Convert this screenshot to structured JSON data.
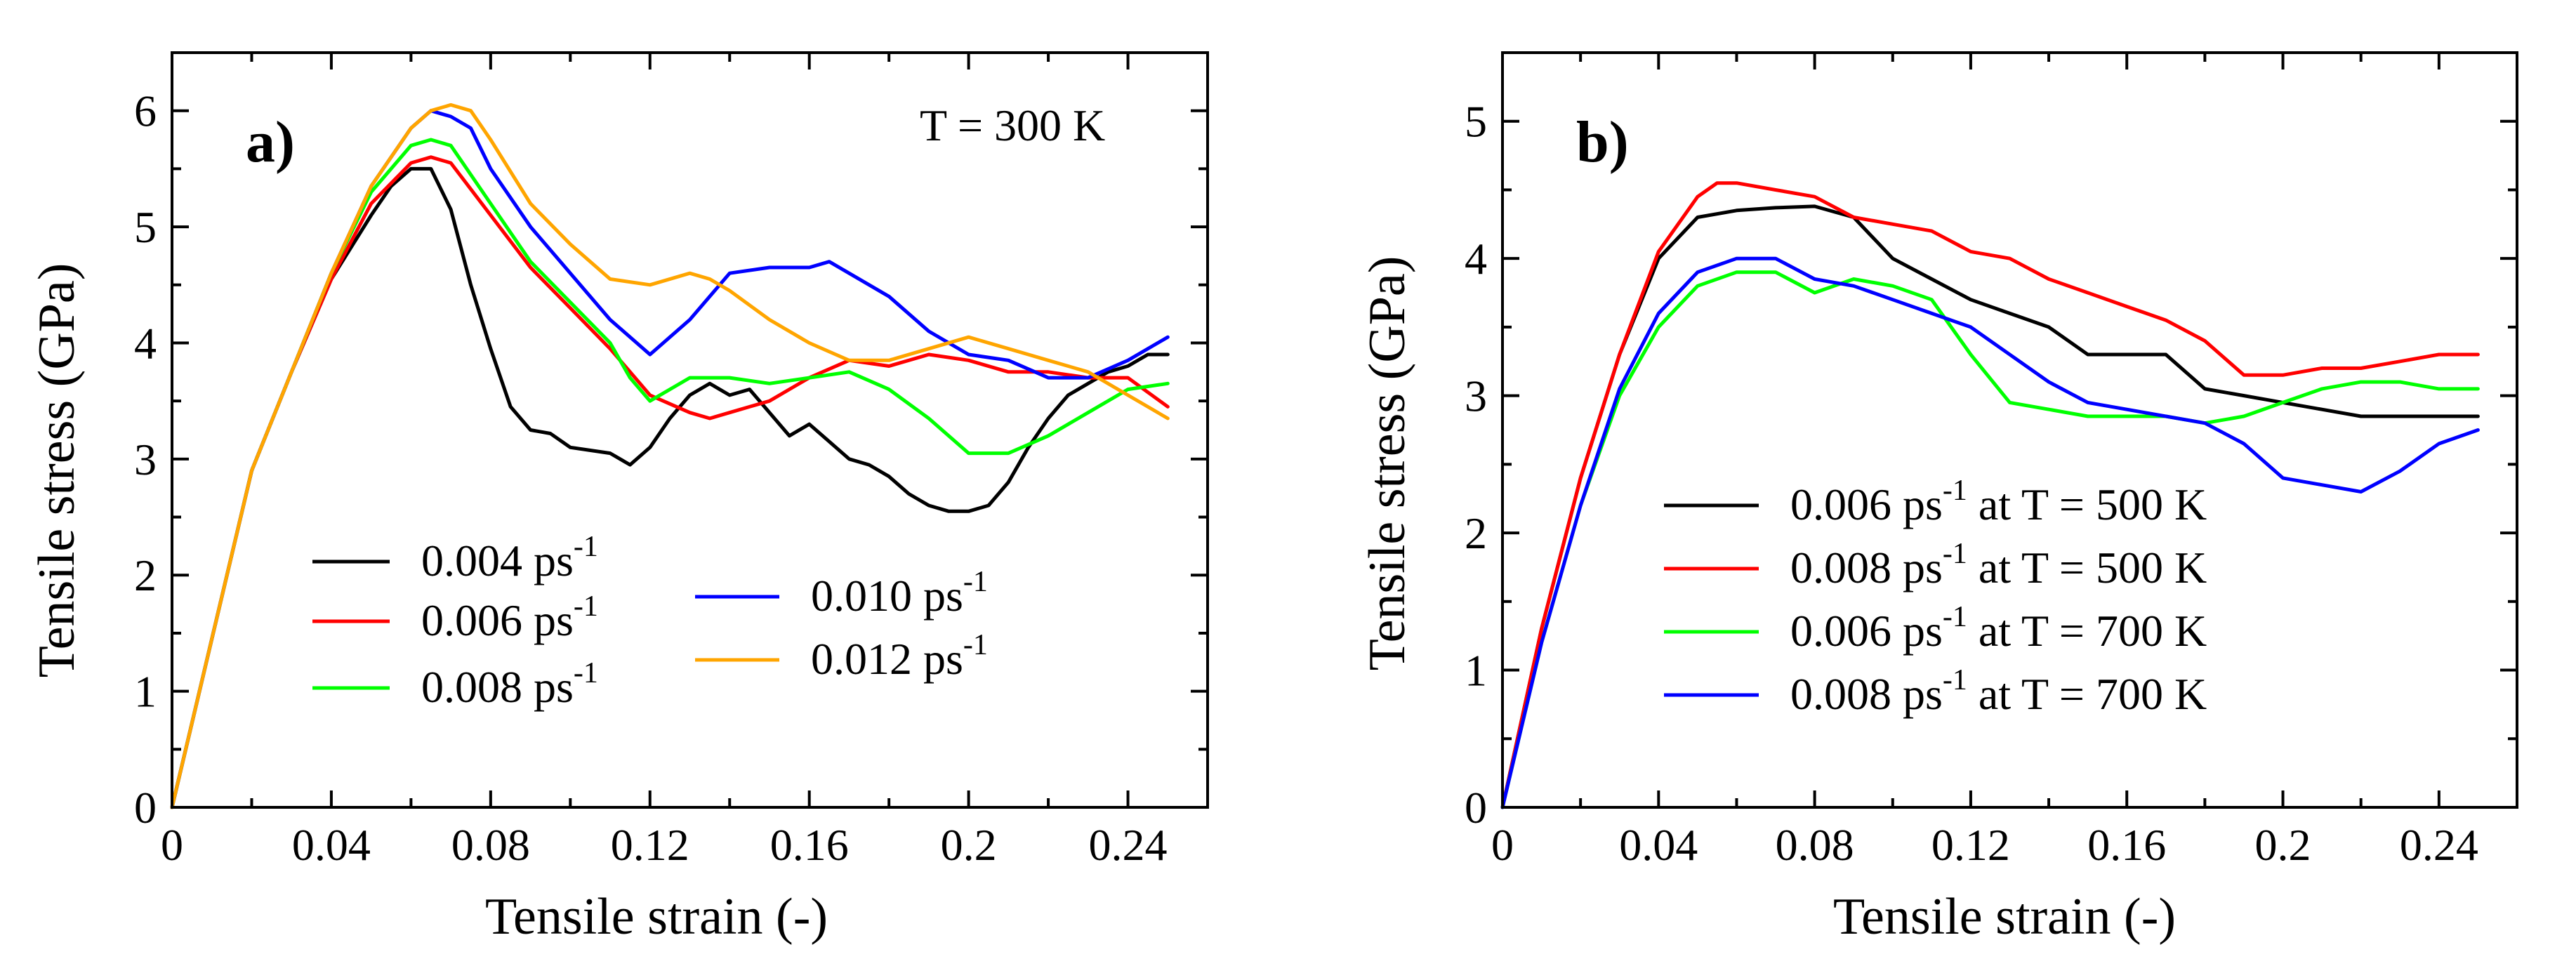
{
  "chart_data": [
    {
      "panel_label": "a)",
      "type": "line",
      "annotation": "T = 300 K",
      "xlabel": "Tensile strain (-)",
      "ylabel": "Tensile stress (GPa)",
      "xlim": [
        0,
        0.26
      ],
      "ylim": [
        0,
        6.5
      ],
      "x_ticks": [
        0,
        0.04,
        0.08,
        0.12,
        0.16,
        0.2,
        0.24
      ],
      "x_tick_labels": [
        "0",
        "0.04",
        "0.08",
        "0.12",
        "0.16",
        "0.2",
        "0.24"
      ],
      "y_ticks": [
        0,
        1,
        2,
        3,
        4,
        5,
        6
      ],
      "y_tick_labels": [
        "0",
        "1",
        "2",
        "3",
        "4",
        "5",
        "6"
      ],
      "legend_unit": "ps",
      "legend_exp": "-1",
      "series": [
        {
          "name": "0.004",
          "color": "#000000",
          "x": [
            0,
            0.01,
            0.02,
            0.03,
            0.04,
            0.05,
            0.055,
            0.06,
            0.065,
            0.07,
            0.075,
            0.08,
            0.085,
            0.09,
            0.095,
            0.1,
            0.11,
            0.115,
            0.12,
            0.125,
            0.13,
            0.135,
            0.14,
            0.145,
            0.15,
            0.155,
            0.16,
            0.165,
            0.17,
            0.175,
            0.18,
            0.185,
            0.19,
            0.195,
            0.2,
            0.205,
            0.21,
            0.215,
            0.22,
            0.225,
            0.23,
            0.235,
            0.24,
            0.245,
            0.25
          ],
          "y": [
            0,
            1.45,
            2.9,
            3.75,
            4.55,
            5.1,
            5.35,
            5.5,
            5.5,
            5.15,
            4.5,
            3.95,
            3.45,
            3.25,
            3.22,
            3.1,
            3.05,
            2.95,
            3.1,
            3.35,
            3.55,
            3.65,
            3.55,
            3.6,
            3.4,
            3.2,
            3.3,
            3.15,
            3.0,
            2.95,
            2.85,
            2.7,
            2.6,
            2.55,
            2.55,
            2.6,
            2.8,
            3.1,
            3.35,
            3.55,
            3.65,
            3.75,
            3.8,
            3.9,
            3.9
          ]
        },
        {
          "name": "0.006",
          "color": "#ff0000",
          "x": [
            0,
            0.01,
            0.02,
            0.03,
            0.04,
            0.05,
            0.06,
            0.065,
            0.07,
            0.08,
            0.09,
            0.1,
            0.11,
            0.12,
            0.13,
            0.135,
            0.14,
            0.145,
            0.15,
            0.155,
            0.16,
            0.17,
            0.18,
            0.19,
            0.2,
            0.21,
            0.22,
            0.23,
            0.24,
            0.25
          ],
          "y": [
            0,
            1.45,
            2.9,
            3.75,
            4.55,
            5.2,
            5.55,
            5.6,
            5.55,
            5.1,
            4.65,
            4.3,
            3.95,
            3.55,
            3.4,
            3.35,
            3.4,
            3.45,
            3.5,
            3.6,
            3.7,
            3.85,
            3.8,
            3.9,
            3.85,
            3.75,
            3.75,
            3.7,
            3.7,
            3.45
          ]
        },
        {
          "name": "0.008",
          "color": "#00ff00",
          "x": [
            0,
            0.01,
            0.02,
            0.03,
            0.04,
            0.05,
            0.06,
            0.065,
            0.07,
            0.08,
            0.09,
            0.1,
            0.11,
            0.115,
            0.12,
            0.13,
            0.14,
            0.15,
            0.16,
            0.17,
            0.18,
            0.19,
            0.2,
            0.21,
            0.22,
            0.23,
            0.24,
            0.25
          ],
          "y": [
            0,
            1.45,
            2.9,
            3.75,
            4.6,
            5.3,
            5.7,
            5.75,
            5.7,
            5.2,
            4.7,
            4.35,
            4.0,
            3.7,
            3.5,
            3.7,
            3.7,
            3.65,
            3.7,
            3.75,
            3.6,
            3.35,
            3.05,
            3.05,
            3.2,
            3.4,
            3.6,
            3.65
          ]
        },
        {
          "name": "0.010",
          "color": "#0000ff",
          "x": [
            0,
            0.01,
            0.02,
            0.03,
            0.04,
            0.05,
            0.06,
            0.065,
            0.07,
            0.075,
            0.08,
            0.09,
            0.1,
            0.11,
            0.12,
            0.13,
            0.14,
            0.15,
            0.155,
            0.16,
            0.165,
            0.17,
            0.18,
            0.19,
            0.2,
            0.21,
            0.22,
            0.23,
            0.24,
            0.25
          ],
          "y": [
            0,
            1.45,
            2.9,
            3.75,
            4.6,
            5.35,
            5.85,
            6.0,
            5.95,
            5.85,
            5.5,
            5.0,
            4.6,
            4.2,
            3.9,
            4.2,
            4.6,
            4.65,
            4.65,
            4.65,
            4.7,
            4.6,
            4.4,
            4.1,
            3.9,
            3.85,
            3.7,
            3.7,
            3.85,
            4.05
          ]
        },
        {
          "name": "0.012",
          "color": "#ffa500",
          "x": [
            0,
            0.01,
            0.02,
            0.03,
            0.04,
            0.05,
            0.06,
            0.065,
            0.07,
            0.075,
            0.08,
            0.09,
            0.1,
            0.11,
            0.12,
            0.13,
            0.135,
            0.14,
            0.15,
            0.16,
            0.17,
            0.18,
            0.19,
            0.2,
            0.21,
            0.22,
            0.23,
            0.24,
            0.25
          ],
          "y": [
            0,
            1.45,
            2.9,
            3.75,
            4.6,
            5.35,
            5.85,
            6.0,
            6.05,
            6.0,
            5.75,
            5.2,
            4.85,
            4.55,
            4.5,
            4.6,
            4.55,
            4.45,
            4.2,
            4.0,
            3.85,
            3.85,
            3.95,
            4.05,
            3.95,
            3.85,
            3.75,
            3.55,
            3.35
          ]
        }
      ]
    },
    {
      "panel_label": "b)",
      "type": "line",
      "xlabel": "Tensile strain (-)",
      "ylabel": "Tensile stress (GPa)",
      "xlim": [
        0,
        0.26
      ],
      "ylim": [
        0,
        5.5
      ],
      "x_ticks": [
        0,
        0.04,
        0.08,
        0.12,
        0.16,
        0.2,
        0.24
      ],
      "x_tick_labels": [
        "0",
        "0.04",
        "0.08",
        "0.12",
        "0.16",
        "0.2",
        "0.24"
      ],
      "y_ticks": [
        0,
        1,
        2,
        3,
        4,
        5
      ],
      "y_tick_labels": [
        "0",
        "1",
        "2",
        "3",
        "4",
        "5"
      ],
      "legend_unit": "ps",
      "legend_exp": "-1",
      "series": [
        {
          "name": "0.006",
          "suffix": " at T = 500 K",
          "color": "#000000",
          "x": [
            0,
            0.01,
            0.02,
            0.03,
            0.04,
            0.05,
            0.06,
            0.07,
            0.08,
            0.09,
            0.1,
            0.11,
            0.12,
            0.13,
            0.14,
            0.15,
            0.16,
            0.17,
            0.18,
            0.19,
            0.2,
            0.21,
            0.22,
            0.23,
            0.24,
            0.25
          ],
          "y": [
            0,
            1.3,
            2.4,
            3.3,
            4.0,
            4.3,
            4.35,
            4.37,
            4.38,
            4.3,
            4.0,
            3.85,
            3.7,
            3.6,
            3.5,
            3.3,
            3.3,
            3.3,
            3.05,
            3.0,
            2.95,
            2.9,
            2.85,
            2.85,
            2.85,
            2.85
          ]
        },
        {
          "name": "0.008",
          "suffix": " at T = 500 K",
          "color": "#ff0000",
          "x": [
            0,
            0.01,
            0.02,
            0.03,
            0.04,
            0.05,
            0.055,
            0.06,
            0.07,
            0.08,
            0.09,
            0.1,
            0.11,
            0.12,
            0.13,
            0.14,
            0.15,
            0.16,
            0.17,
            0.18,
            0.19,
            0.2,
            0.21,
            0.22,
            0.23,
            0.24,
            0.25
          ],
          "y": [
            0,
            1.3,
            2.4,
            3.3,
            4.05,
            4.45,
            4.55,
            4.55,
            4.5,
            4.45,
            4.3,
            4.25,
            4.2,
            4.05,
            4.0,
            3.85,
            3.75,
            3.65,
            3.55,
            3.4,
            3.15,
            3.15,
            3.2,
            3.2,
            3.25,
            3.3,
            3.3
          ]
        },
        {
          "name": "0.006",
          "suffix": " at T = 700 K",
          "color": "#00ff00",
          "x": [
            0,
            0.01,
            0.02,
            0.03,
            0.04,
            0.05,
            0.06,
            0.07,
            0.08,
            0.09,
            0.1,
            0.11,
            0.12,
            0.13,
            0.14,
            0.15,
            0.16,
            0.17,
            0.18,
            0.19,
            0.2,
            0.21,
            0.22,
            0.23,
            0.24,
            0.25
          ],
          "y": [
            0,
            1.2,
            2.2,
            3.0,
            3.5,
            3.8,
            3.9,
            3.9,
            3.75,
            3.85,
            3.8,
            3.7,
            3.3,
            2.95,
            2.9,
            2.85,
            2.85,
            2.85,
            2.8,
            2.85,
            2.95,
            3.05,
            3.1,
            3.1,
            3.05,
            3.05
          ]
        },
        {
          "name": "0.008",
          "suffix": " at T = 700 K",
          "color": "#0000ff",
          "x": [
            0,
            0.01,
            0.02,
            0.03,
            0.04,
            0.05,
            0.06,
            0.07,
            0.08,
            0.09,
            0.1,
            0.11,
            0.12,
            0.13,
            0.14,
            0.15,
            0.16,
            0.17,
            0.18,
            0.19,
            0.2,
            0.21,
            0.22,
            0.23,
            0.24,
            0.25
          ],
          "y": [
            0,
            1.2,
            2.2,
            3.05,
            3.6,
            3.9,
            4.0,
            4.0,
            3.85,
            3.8,
            3.7,
            3.6,
            3.5,
            3.3,
            3.1,
            2.95,
            2.9,
            2.85,
            2.8,
            2.65,
            2.4,
            2.35,
            2.3,
            2.45,
            2.65,
            2.75
          ]
        }
      ]
    }
  ]
}
